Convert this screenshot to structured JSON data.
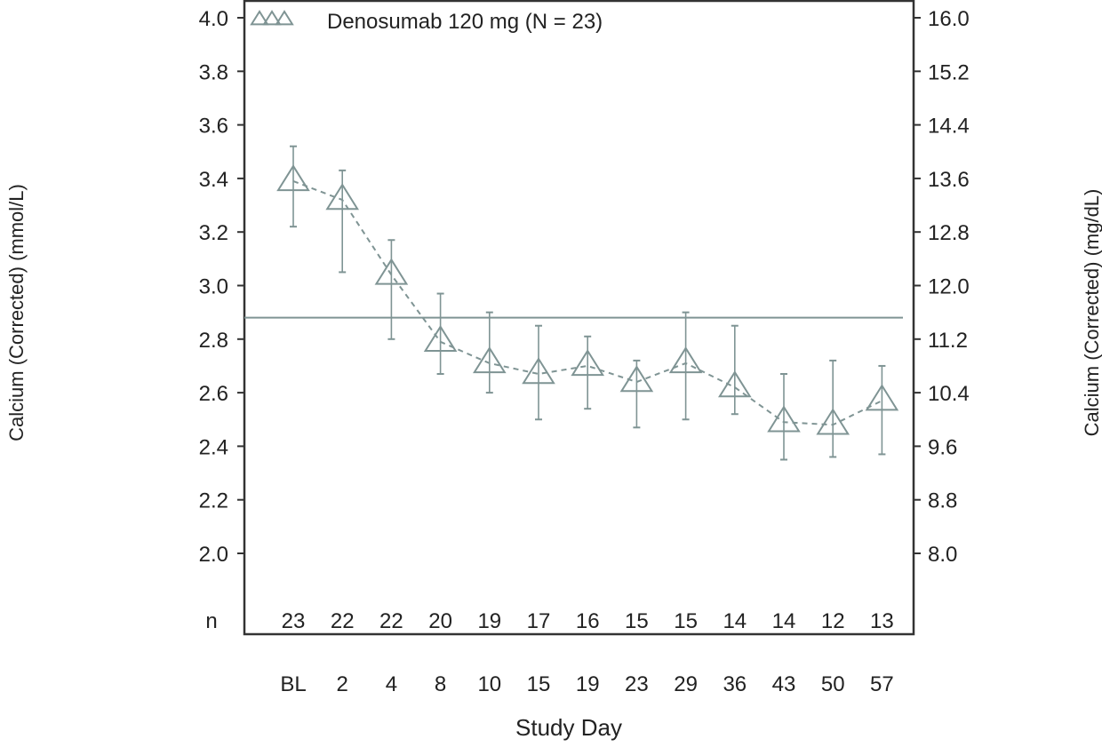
{
  "chart_data": {
    "type": "line",
    "title": "",
    "xlabel": "Study Day",
    "ylabel": "Calcium (Corrected) (mmol/L)",
    "ylabel_right": "Calcium (Corrected)  (mg/dL)",
    "categories": [
      "BL",
      "2",
      "4",
      "8",
      "10",
      "15",
      "19",
      "23",
      "29",
      "36",
      "43",
      "50",
      "57"
    ],
    "n_label": "n",
    "n_values": [
      "23",
      "22",
      "22",
      "20",
      "19",
      "17",
      "16",
      "15",
      "15",
      "14",
      "14",
      "12",
      "13"
    ],
    "ylim": [
      2.0,
      4.0
    ],
    "yticks": [
      "2.0",
      "2.2",
      "2.4",
      "2.6",
      "2.8",
      "3.0",
      "3.2",
      "3.4",
      "3.6",
      "3.8",
      "4.0"
    ],
    "ylim_right": [
      8.0,
      16.0
    ],
    "yticks_right": [
      "8.0",
      "8.8",
      "9.6",
      "10.4",
      "11.2",
      "12.0",
      "12.8",
      "13.6",
      "14.4",
      "15.2",
      "16.0"
    ],
    "reference_line": 2.88,
    "grid": false,
    "legend_position": "top-left",
    "series": [
      {
        "name": "Denosumab 120 mg (N = 23)",
        "marker": "open-triangle",
        "line_style": "dashed",
        "values": [
          3.39,
          3.32,
          3.04,
          2.79,
          2.71,
          2.67,
          2.7,
          2.64,
          2.71,
          2.62,
          2.49,
          2.48,
          2.57
        ],
        "upper": [
          3.52,
          3.43,
          3.17,
          2.97,
          2.9,
          2.85,
          2.81,
          2.72,
          2.9,
          2.85,
          2.67,
          2.72,
          2.7
        ],
        "lower": [
          3.22,
          3.05,
          2.8,
          2.67,
          2.6,
          2.5,
          2.54,
          2.47,
          2.5,
          2.52,
          2.35,
          2.36,
          2.37
        ]
      }
    ],
    "colors": {
      "series": "#7f9494",
      "axis": "#333333",
      "text": "#222222"
    }
  }
}
